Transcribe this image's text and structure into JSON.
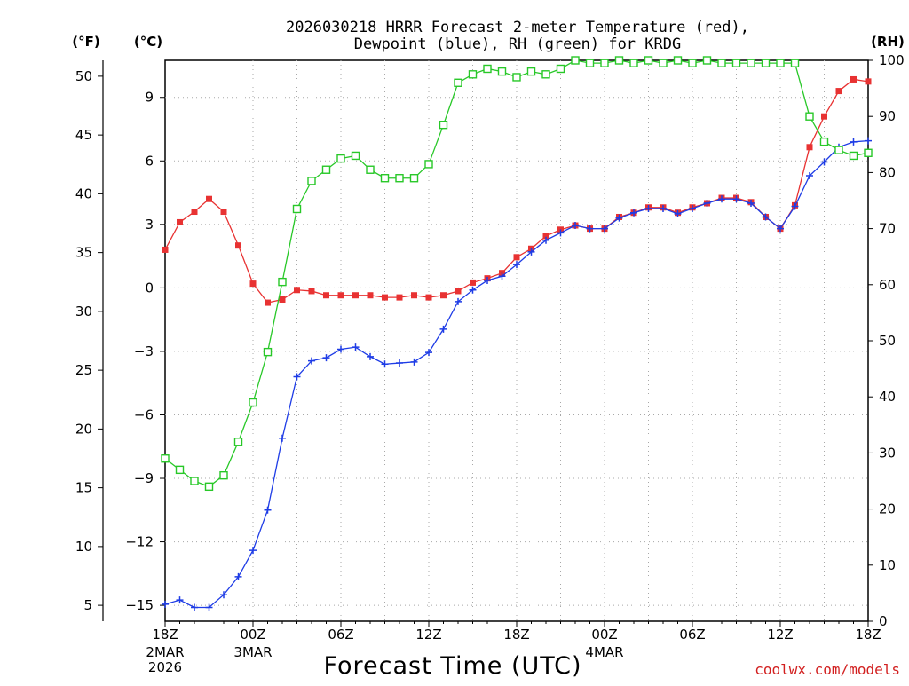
{
  "chart_data": {
    "type": "line",
    "title": "2026030218 HRRR Forecast 2-meter Temperature (red), Dewpoint (blue), RH (green) for KRDG",
    "title_lines": [
      "2026030218 HRRR Forecast 2-meter Temperature (red),",
      "Dewpoint (blue), RH (green) for KRDG"
    ],
    "xlabel": "Forecast Time (UTC)",
    "credit": "coolwx.com/models",
    "units": {
      "fahrenheit": "(°F)",
      "celsius": "(°C)",
      "rh": "(RH)"
    },
    "x_range_hours": [
      0,
      48
    ],
    "celsius_range": [
      -15.75,
      10.75
    ],
    "rh_range": [
      0,
      100
    ],
    "fahrenheit_ticks": [
      "5",
      "10",
      "15",
      "20",
      "25",
      "30",
      "35",
      "40",
      "45",
      "50"
    ],
    "fahrenheit_tick_values": [
      5,
      10,
      15,
      20,
      25,
      30,
      35,
      40,
      45,
      50
    ],
    "celsius_ticks": [
      "−15",
      "−12",
      "−9",
      "−6",
      "−3",
      "0",
      "3",
      "6",
      "9"
    ],
    "celsius_tick_values": [
      -15,
      -12,
      -9,
      -6,
      -3,
      0,
      3,
      6,
      9
    ],
    "rh_ticks": [
      "0",
      "10",
      "20",
      "30",
      "40",
      "50",
      "60",
      "70",
      "80",
      "90",
      "100"
    ],
    "rh_tick_values": [
      0,
      10,
      20,
      30,
      40,
      50,
      60,
      70,
      80,
      90,
      100
    ],
    "x_ticks": [
      {
        "hour": 0,
        "label": "18Z",
        "sub": [
          "2MAR",
          "2026"
        ]
      },
      {
        "hour": 6,
        "label": "00Z",
        "sub": [
          "3MAR"
        ]
      },
      {
        "hour": 12,
        "label": "06Z",
        "sub": []
      },
      {
        "hour": 18,
        "label": "12Z",
        "sub": []
      },
      {
        "hour": 24,
        "label": "18Z",
        "sub": []
      },
      {
        "hour": 30,
        "label": "00Z",
        "sub": [
          "4MAR"
        ]
      },
      {
        "hour": 36,
        "label": "06Z",
        "sub": []
      },
      {
        "hour": 42,
        "label": "12Z",
        "sub": []
      },
      {
        "hour": 48,
        "label": "18Z",
        "sub": []
      }
    ],
    "x": [
      0,
      1,
      2,
      3,
      4,
      5,
      6,
      7,
      8,
      9,
      10,
      11,
      12,
      13,
      14,
      15,
      16,
      17,
      18,
      19,
      20,
      21,
      22,
      23,
      24,
      25,
      26,
      27,
      28,
      29,
      30,
      31,
      32,
      33,
      34,
      35,
      36,
      37,
      38,
      39,
      40,
      41,
      42,
      43,
      44,
      45,
      46,
      47,
      48
    ],
    "series": [
      {
        "name": "Temperature",
        "color": "#e83232",
        "axis": "celsius",
        "marker": "filled-square",
        "values": [
          1.8,
          3.1,
          3.6,
          4.2,
          3.6,
          2.0,
          0.2,
          -0.7,
          -0.55,
          -0.1,
          -0.15,
          -0.35,
          -0.35,
          -0.35,
          -0.35,
          -0.45,
          -0.45,
          -0.35,
          -0.45,
          -0.35,
          -0.15,
          0.25,
          0.45,
          0.7,
          1.45,
          1.85,
          2.45,
          2.75,
          2.95,
          2.8,
          2.8,
          3.35,
          3.55,
          3.8,
          3.8,
          3.55,
          3.8,
          4.0,
          4.25,
          4.25,
          4.05,
          3.35,
          2.8,
          3.9,
          6.65,
          8.1,
          9.3,
          9.85,
          9.75
        ]
      },
      {
        "name": "Dewpoint",
        "color": "#1e3ce6",
        "axis": "celsius",
        "marker": "plus",
        "values": [
          -14.95,
          -14.75,
          -15.1,
          -15.1,
          -14.5,
          -13.65,
          -12.4,
          -10.5,
          -7.1,
          -4.2,
          -3.45,
          -3.3,
          -2.9,
          -2.8,
          -3.25,
          -3.6,
          -3.55,
          -3.5,
          -3.05,
          -1.95,
          -0.65,
          -0.1,
          0.35,
          0.55,
          1.1,
          1.7,
          2.25,
          2.6,
          2.95,
          2.8,
          2.8,
          3.3,
          3.55,
          3.75,
          3.75,
          3.5,
          3.75,
          4.0,
          4.2,
          4.2,
          4.0,
          3.35,
          2.8,
          3.85,
          5.3,
          5.95,
          6.65,
          6.9,
          6.95
        ]
      },
      {
        "name": "Relative Humidity",
        "color": "#28c828",
        "axis": "rh",
        "marker": "open-square",
        "values": [
          29,
          27,
          25,
          24,
          26,
          32,
          39,
          48,
          60.5,
          73.5,
          78.5,
          80.5,
          82.5,
          83,
          80.5,
          79,
          79,
          79,
          81.5,
          88.5,
          96,
          97.5,
          98.5,
          98,
          97,
          98,
          97.5,
          98.5,
          100,
          99.5,
          99.5,
          100,
          99.5,
          100,
          99.5,
          100,
          99.5,
          100,
          99.5,
          99.5,
          99.5,
          99.5,
          99.5,
          99.5,
          90,
          85.5,
          84,
          83,
          83.5
        ]
      }
    ]
  }
}
